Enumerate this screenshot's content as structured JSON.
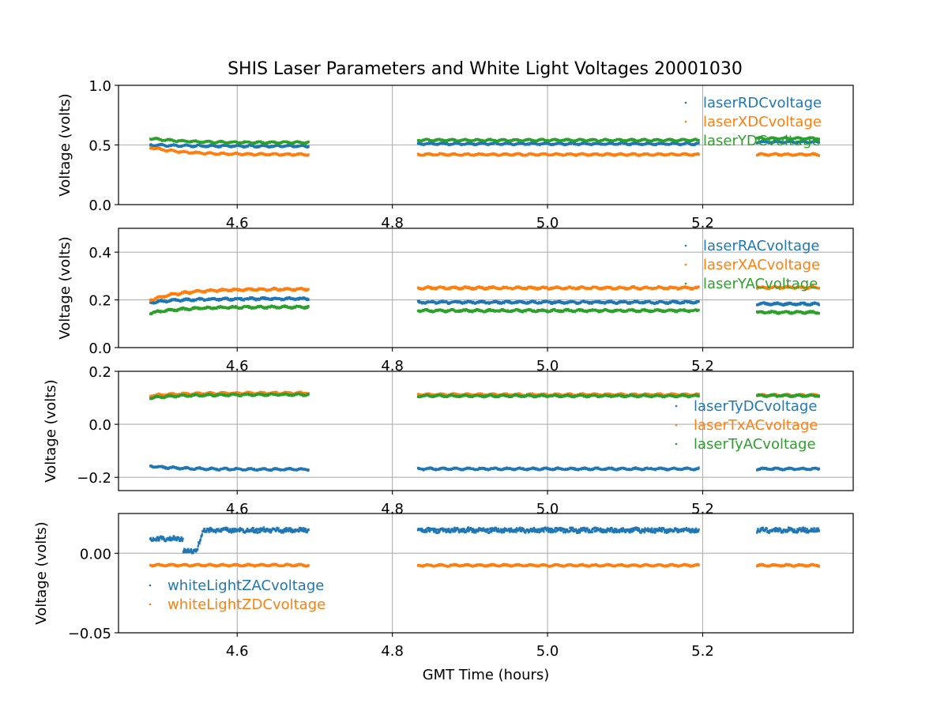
{
  "chart_data": {
    "type": "scatter",
    "title": "SHIS Laser Parameters and White Light Voltages 20001030",
    "xlabel": "GMT Time (hours)",
    "xlim": [
      4.447,
      5.394
    ],
    "xticks": [
      4.6,
      4.8,
      5.0,
      5.2
    ],
    "xtick_labels": [
      "4.6",
      "4.8",
      "5.0",
      "5.2"
    ],
    "grid": true,
    "segments": [
      [
        4.488,
        4.692
      ],
      [
        4.833,
        5.195
      ],
      [
        5.27,
        5.35
      ]
    ],
    "subplots": [
      {
        "ylabel": "Voltage (volts)",
        "ylim": [
          0.0,
          1.0
        ],
        "yticks": [
          0.0,
          0.5,
          1.0
        ],
        "ytick_labels": [
          "0.0",
          "0.5",
          "1.0"
        ],
        "legend_loc": "upper right",
        "series": [
          {
            "name": "laserRDCvoltage",
            "color": "#1f77b4",
            "start": 0.5,
            "level": 0.49,
            "right_levels": [
              0.51,
              0.525
            ],
            "noise": 0.004
          },
          {
            "name": "laserXDCvoltage",
            "color": "#ff7f0e",
            "start": 0.48,
            "level": 0.42,
            "right_levels": [
              0.42,
              0.42
            ],
            "noise": 0.004
          },
          {
            "name": "laserYDCvoltage",
            "color": "#2ca02c",
            "start": 0.555,
            "level": 0.52,
            "right_levels": [
              0.54,
              0.555
            ],
            "noise": 0.004
          }
        ]
      },
      {
        "ylabel": "Voltage (volts)",
        "ylim": [
          0.0,
          0.5
        ],
        "yticks": [
          0.0,
          0.2,
          0.4
        ],
        "ytick_labels": [
          "0.0",
          "0.2",
          "0.4"
        ],
        "legend_loc": "upper right",
        "series": [
          {
            "name": "laserRACvoltage",
            "color": "#1f77b4",
            "start": 0.19,
            "level": 0.205,
            "right_levels": [
              0.19,
              0.183
            ],
            "noise": 0.003
          },
          {
            "name": "laserXACvoltage",
            "color": "#ff7f0e",
            "start": 0.2,
            "level": 0.245,
            "right_levels": [
              0.25,
              0.252
            ],
            "noise": 0.003
          },
          {
            "name": "laserYACvoltage",
            "color": "#2ca02c",
            "start": 0.145,
            "level": 0.17,
            "right_levels": [
              0.155,
              0.148
            ],
            "noise": 0.003
          }
        ]
      },
      {
        "ylabel": "Voltage (volts)",
        "ylim": [
          -0.25,
          0.2
        ],
        "yticks": [
          -0.2,
          0.0,
          0.2
        ],
        "ytick_labels": [
          "−0.2",
          "0.0",
          "0.2"
        ],
        "legend_loc": "center right",
        "series": [
          {
            "name": "laserTyDCvoltage",
            "color": "#1f77b4",
            "start": -0.158,
            "level": -0.17,
            "right_levels": [
              -0.168,
              -0.168
            ],
            "noise": 0.002
          },
          {
            "name": "laserTxACvoltage",
            "color": "#ff7f0e",
            "start": 0.108,
            "level": 0.118,
            "right_levels": [
              0.112,
              0.11
            ],
            "noise": 0.002
          },
          {
            "name": "laserTyACvoltage",
            "color": "#2ca02c",
            "start": 0.1,
            "level": 0.112,
            "right_levels": [
              0.107,
              0.108
            ],
            "noise": 0.002
          }
        ]
      },
      {
        "ylabel": "Voltage (volts)",
        "ylim": [
          -0.05,
          0.025
        ],
        "yticks": [
          -0.05,
          0.0
        ],
        "ytick_labels": [
          "−0.05",
          "0.00"
        ],
        "legend_loc": "lower left",
        "series": [
          {
            "name": "whiteLightZACvoltage",
            "color": "#1f77b4",
            "start": 0.009,
            "level": 0.0145,
            "right_levels": [
              0.0145,
              0.0145
            ],
            "noise": 0.0012,
            "dip": {
              "x_start": 4.53,
              "x_end": 4.548,
              "value": 0.0015,
              "pre_level": 0.009
            }
          },
          {
            "name": "whiteLightZDCvoltage",
            "color": "#ff7f0e",
            "start": -0.0075,
            "level": -0.0075,
            "right_levels": [
              -0.0076,
              -0.0076
            ],
            "noise": 0.0003
          }
        ]
      }
    ]
  }
}
